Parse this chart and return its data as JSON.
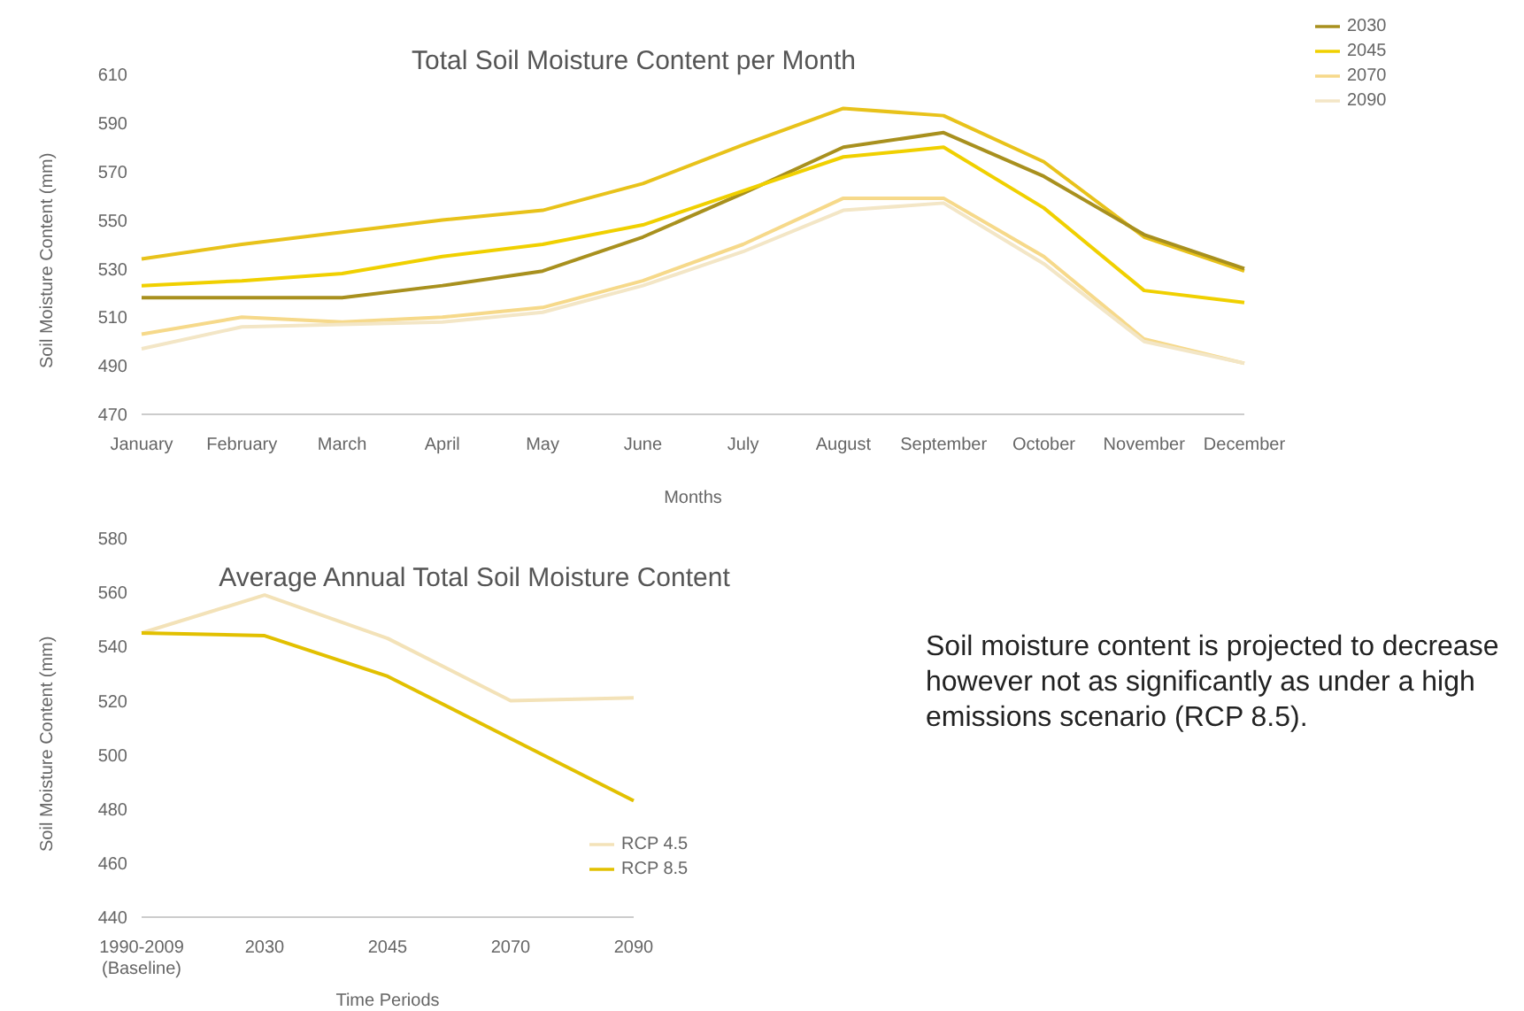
{
  "chart_data": [
    {
      "type": "line",
      "title": "Total Soil Moisture Content per Month",
      "xlabel": "Months",
      "ylabel": "Soil Moisture Content (mm)",
      "categories": [
        "January",
        "February",
        "March",
        "April",
        "May",
        "June",
        "July",
        "August",
        "September",
        "October",
        "November",
        "December"
      ],
      "series": [
        {
          "color": "#e8c21a",
          "values": [
            534,
            540,
            545,
            550,
            554,
            565,
            581,
            596,
            593,
            574,
            543,
            529
          ]
        },
        {
          "name": "2030",
          "color": "#a8901e",
          "values": [
            518,
            518,
            518,
            523,
            529,
            543,
            561,
            580,
            586,
            568,
            544,
            530
          ]
        },
        {
          "name": "2045",
          "color": "#f0d000",
          "values": [
            523,
            525,
            528,
            535,
            540,
            548,
            562,
            576,
            580,
            555,
            521,
            516
          ]
        },
        {
          "name": "2070",
          "color": "#f6d98a",
          "values": [
            503,
            510,
            508,
            510,
            514,
            525,
            540,
            559,
            559,
            535,
            501,
            491
          ]
        },
        {
          "name": "2090",
          "color": "#f3e6c6",
          "values": [
            497,
            506,
            507,
            508,
            512,
            523,
            537,
            554,
            557,
            532,
            500,
            491
          ]
        }
      ],
      "ylim": [
        470,
        610
      ],
      "yticks": [
        470,
        490,
        510,
        530,
        550,
        570,
        590,
        610
      ],
      "grid": false,
      "legend": "top right",
      "marker": "none"
    },
    {
      "type": "line",
      "title": "Average Annual Total Soil Moisture Content",
      "xlabel": "Time Periods",
      "ylabel": "Soil Moisture Content (mm)",
      "categories": [
        "1990-2009 (Baseline)",
        "2030",
        "2045",
        "2070",
        "2090"
      ],
      "series": [
        {
          "name": "RCP 4.5",
          "color": "#f3e2b8",
          "values": [
            545,
            559,
            543,
            520,
            521
          ]
        },
        {
          "name": "RCP 8.5",
          "color": "#e2c000",
          "values": [
            545,
            544,
            529,
            506,
            483
          ]
        }
      ],
      "ylim": [
        440,
        580
      ],
      "yticks": [
        440,
        460,
        480,
        500,
        520,
        540,
        560,
        580
      ],
      "grid": false,
      "legend": "bottom right",
      "marker": "none",
      "annotations": [
        "Soil moisture content is projected to decrease however not as significantly as under a high emissions scenario (RCP 8.5)."
      ]
    }
  ]
}
